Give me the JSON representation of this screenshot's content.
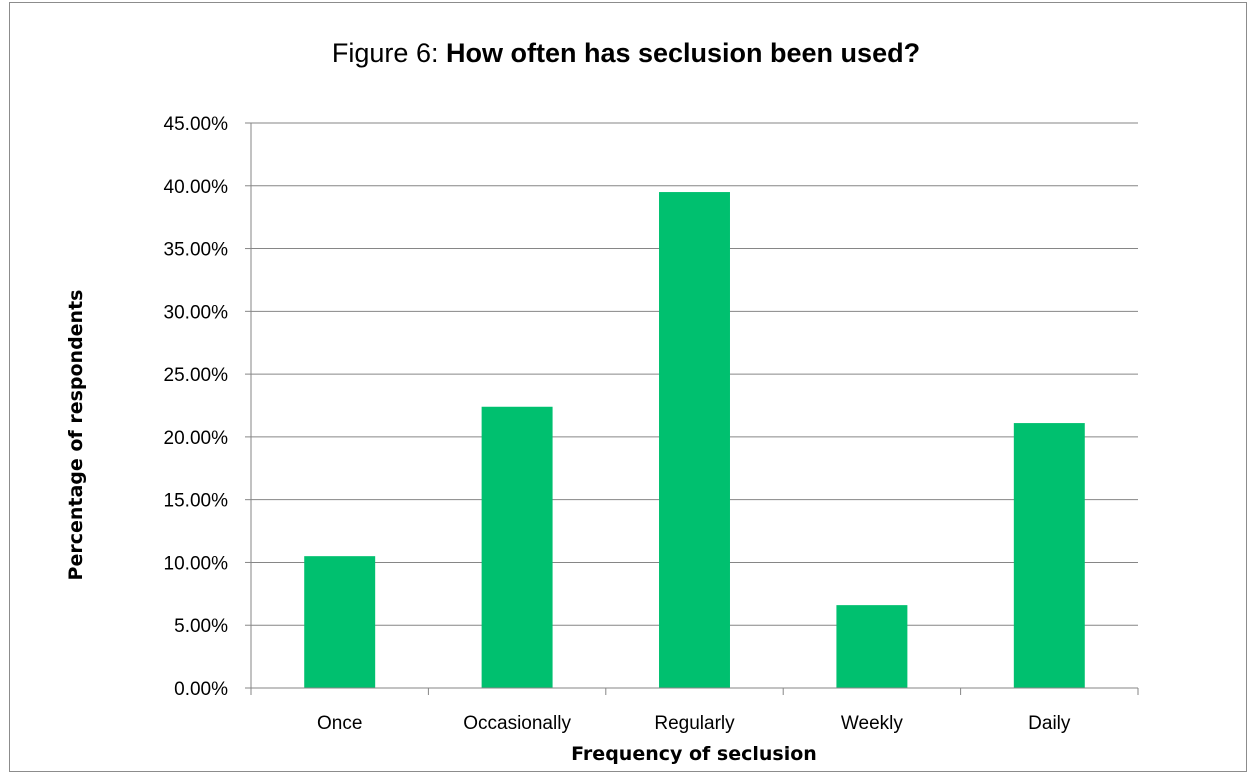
{
  "chart_data": {
    "type": "bar",
    "title_prefix": "Figure 6:",
    "title": "How often has seclusion been used?",
    "xlabel": "Frequency of seclusion",
    "ylabel": "Percentage of respondents",
    "categories": [
      "Once",
      "Occasionally",
      "Regularly",
      "Weekly",
      "Daily"
    ],
    "values": [
      10.5,
      22.4,
      39.5,
      6.6,
      21.1
    ],
    "ylim": [
      0,
      45
    ],
    "yticks": [
      "0.00%",
      "5.00%",
      "10.00%",
      "15.00%",
      "20.00%",
      "25.00%",
      "30.00%",
      "35.00%",
      "40.00%",
      "45.00%"
    ],
    "grid": true,
    "bar_color": "#00c06f"
  }
}
